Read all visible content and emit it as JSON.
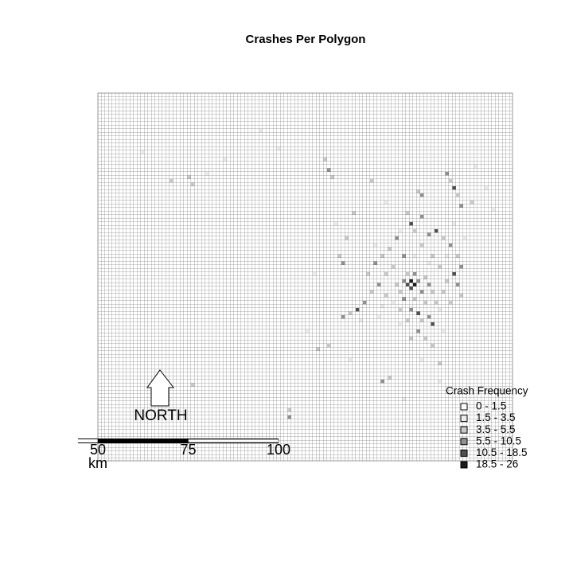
{
  "title": "Crashes Per Polygon",
  "north_label": "NORTH",
  "scale_bar": {
    "ticks": [
      50,
      75,
      100
    ],
    "unit": "km"
  },
  "legend": {
    "title": "Crash Frequency",
    "classes": [
      {
        "label": "0 - 1.5",
        "color": "#ffffff"
      },
      {
        "label": "1.5 - 3.5",
        "color": "#ebebeb"
      },
      {
        "label": "3.5 - 5.5",
        "color": "#c8c8c8"
      },
      {
        "label": "5.5 - 10.5",
        "color": "#909090"
      },
      {
        "label": "10.5 - 18.5",
        "color": "#505050"
      },
      {
        "label": "18.5 - 26",
        "color": "#1a1a1a"
      }
    ]
  },
  "cells": [
    [
      87,
      52,
      5
    ],
    [
      88,
      53,
      5
    ],
    [
      86,
      53,
      4
    ],
    [
      87,
      54,
      4
    ],
    [
      89,
      52,
      3
    ],
    [
      85,
      52,
      3
    ],
    [
      88,
      50,
      3
    ],
    [
      90,
      55,
      3
    ],
    [
      84,
      55,
      2
    ],
    [
      86,
      50,
      2
    ],
    [
      91,
      51,
      2
    ],
    [
      92,
      53,
      3
    ],
    [
      93,
      55,
      2
    ],
    [
      83,
      53,
      2
    ],
    [
      85,
      57,
      3
    ],
    [
      88,
      57,
      2
    ],
    [
      91,
      58,
      2
    ],
    [
      87,
      60,
      3
    ],
    [
      89,
      61,
      4
    ],
    [
      92,
      62,
      3
    ],
    [
      93,
      64,
      4
    ],
    [
      90,
      63,
      2
    ],
    [
      86,
      63,
      2
    ],
    [
      84,
      60,
      2
    ],
    [
      80,
      56,
      2
    ],
    [
      78,
      53,
      3
    ],
    [
      76,
      55,
      2
    ],
    [
      74,
      58,
      3
    ],
    [
      72,
      60,
      4
    ],
    [
      70,
      61,
      2
    ],
    [
      68,
      62,
      3
    ],
    [
      75,
      50,
      2
    ],
    [
      77,
      47,
      3
    ],
    [
      79,
      45,
      2
    ],
    [
      81,
      43,
      2
    ],
    [
      83,
      40,
      3
    ],
    [
      87,
      36,
      4
    ],
    [
      88,
      38,
      2
    ],
    [
      86,
      33,
      2
    ],
    [
      90,
      34,
      3
    ],
    [
      92,
      39,
      3
    ],
    [
      94,
      38,
      4
    ],
    [
      96,
      40,
      2
    ],
    [
      98,
      42,
      3
    ],
    [
      100,
      45,
      2
    ],
    [
      101,
      48,
      3
    ],
    [
      99,
      50,
      4
    ],
    [
      97,
      52,
      2
    ],
    [
      100,
      53,
      3
    ],
    [
      101,
      56,
      2
    ],
    [
      95,
      48,
      2
    ],
    [
      93,
      45,
      2
    ],
    [
      90,
      42,
      2
    ],
    [
      85,
      45,
      3
    ],
    [
      82,
      48,
      2
    ],
    [
      80,
      50,
      2
    ],
    [
      89,
      66,
      3
    ],
    [
      91,
      68,
      2
    ],
    [
      87,
      68,
      2
    ],
    [
      93,
      70,
      2
    ],
    [
      96,
      55,
      2
    ],
    [
      94,
      58,
      2
    ],
    [
      98,
      58,
      2
    ],
    [
      63,
      18,
      2
    ],
    [
      64,
      21,
      3
    ],
    [
      65,
      23,
      2
    ],
    [
      89,
      27,
      2
    ],
    [
      90,
      28,
      3
    ],
    [
      97,
      22,
      3
    ],
    [
      98,
      24,
      2
    ],
    [
      99,
      26,
      4
    ],
    [
      100,
      28,
      2
    ],
    [
      101,
      31,
      3
    ],
    [
      104,
      30,
      2
    ],
    [
      71,
      33,
      2
    ],
    [
      67,
      45,
      2
    ],
    [
      68,
      47,
      3
    ],
    [
      61,
      71,
      2
    ],
    [
      64,
      70,
      2
    ],
    [
      79,
      80,
      3
    ],
    [
      81,
      79,
      2
    ],
    [
      53,
      88,
      2
    ],
    [
      53,
      90,
      3
    ],
    [
      25,
      23,
      2
    ],
    [
      26,
      25,
      2
    ],
    [
      20,
      24,
      2
    ],
    [
      26,
      81,
      2
    ],
    [
      76,
      24,
      2
    ],
    [
      69,
      40,
      2
    ],
    [
      95,
      75,
      2
    ],
    [
      82,
      58,
      1
    ],
    [
      79,
      59,
      1
    ],
    [
      84,
      64,
      1
    ],
    [
      95,
      60,
      1
    ],
    [
      97,
      45,
      1
    ],
    [
      88,
      45,
      1
    ],
    [
      92,
      47,
      1
    ],
    [
      78,
      62,
      1
    ],
    [
      73,
      63,
      1
    ],
    [
      96,
      66,
      1
    ],
    [
      99,
      36,
      1
    ],
    [
      102,
      40,
      1
    ],
    [
      84,
      38,
      1
    ],
    [
      77,
      42,
      1
    ],
    [
      80,
      30,
      1
    ],
    [
      66,
      36,
      1
    ],
    [
      60,
      50,
      1
    ],
    [
      58,
      66,
      1
    ],
    [
      70,
      74,
      1
    ],
    [
      90,
      74,
      1
    ],
    [
      95,
      80,
      1
    ],
    [
      85,
      85,
      1
    ],
    [
      50,
      15,
      1
    ],
    [
      45,
      10,
      1
    ],
    [
      30,
      22,
      1
    ],
    [
      35,
      18,
      1
    ],
    [
      12,
      16,
      1
    ],
    [
      105,
      20,
      1
    ],
    [
      108,
      26,
      1
    ],
    [
      110,
      32,
      1
    ]
  ]
}
